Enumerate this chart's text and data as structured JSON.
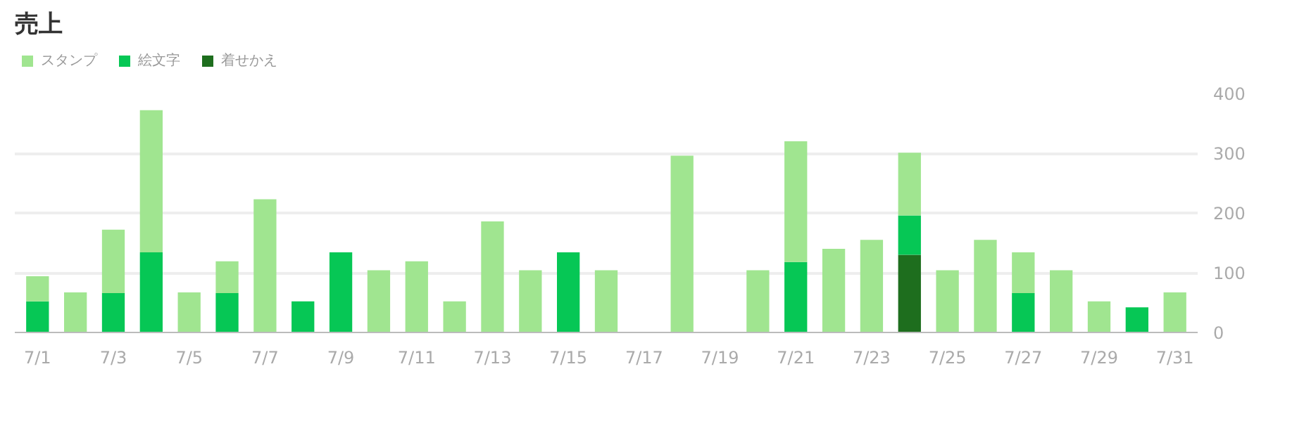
{
  "chart_data": {
    "type": "bar",
    "title": "売上",
    "stacked": true,
    "legend": "top left",
    "grid": "y",
    "categories": [
      "7/1",
      null,
      "7/3",
      null,
      "7/5",
      null,
      "7/7",
      null,
      "7/9",
      null,
      "7/11",
      null,
      "7/13",
      null,
      "7/15",
      null,
      "7/17",
      null,
      "7/19",
      null,
      "7/21",
      null,
      "7/23",
      null,
      "7/25",
      null,
      "7/27",
      null,
      "7/29",
      null,
      "7/31"
    ],
    "ylim": [
      0,
      400
    ],
    "yticks": [
      0,
      100,
      200,
      300,
      400
    ],
    "series": [
      {
        "name": "着せかえ",
        "color": "#1e6e1e",
        "values": [
          null,
          null,
          null,
          null,
          null,
          null,
          null,
          null,
          null,
          null,
          null,
          null,
          null,
          null,
          null,
          null,
          null,
          null,
          null,
          null,
          null,
          null,
          null,
          130,
          null,
          null,
          null,
          null,
          null,
          null,
          null
        ]
      },
      {
        "name": "絵文字",
        "color": "#06c755",
        "values": [
          52,
          null,
          66,
          134,
          null,
          66,
          null,
          52,
          134,
          null,
          null,
          null,
          null,
          null,
          134,
          null,
          null,
          null,
          null,
          null,
          118,
          null,
          null,
          66,
          null,
          null,
          66,
          null,
          null,
          42,
          null
        ]
      },
      {
        "name": "スタンプ",
        "color": "#a0e590",
        "values": [
          42,
          67,
          106,
          238,
          67,
          53,
          223,
          null,
          null,
          104,
          119,
          52,
          186,
          104,
          null,
          104,
          null,
          296,
          null,
          104,
          202,
          140,
          155,
          105,
          104,
          155,
          68,
          104,
          52,
          null,
          67
        ]
      }
    ]
  }
}
